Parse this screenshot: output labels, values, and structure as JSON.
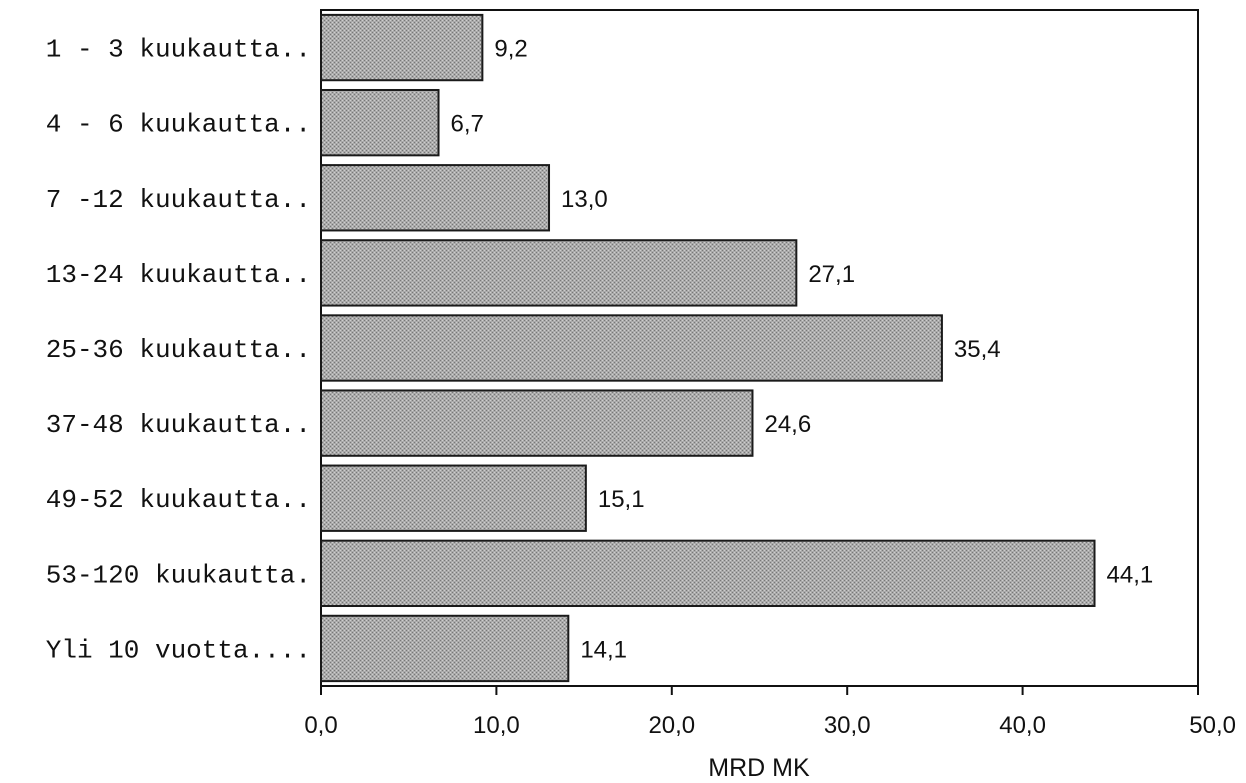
{
  "chart_data": {
    "type": "bar",
    "orientation": "horizontal",
    "categories": [
      "1 - 3 kuukautta..",
      "4 - 6 kuukautta..",
      "7 -12 kuukautta..",
      "13-24 kuukautta..",
      "25-36 kuukautta..",
      "37-48 kuukautta..",
      "49-52 kuukautta..",
      "53-120 kuukautta.",
      "Yli 10 vuotta...."
    ],
    "values": [
      9.2,
      6.7,
      13.0,
      27.1,
      35.4,
      24.6,
      15.1,
      44.1,
      14.1
    ],
    "data_labels": [
      "9,2",
      "6,7",
      "13,0",
      "27,1",
      "35,4",
      "24,6",
      "15,1",
      "44,1",
      "14,1"
    ],
    "xlim": [
      0,
      50
    ],
    "xticks": [
      0,
      10,
      20,
      30,
      40,
      50
    ],
    "xtick_labels": [
      "0,0",
      "10,0",
      "20,0",
      "30,0",
      "40,0",
      "50,0"
    ],
    "xlabel": "MRD MK",
    "ylabel": "",
    "title": "",
    "grid": false,
    "legend": "none",
    "colors": {
      "bar_fill": "#a4a4a4",
      "bar_stroke": "#1a1a1a",
      "axis": "#111111",
      "text": "#111111"
    }
  }
}
